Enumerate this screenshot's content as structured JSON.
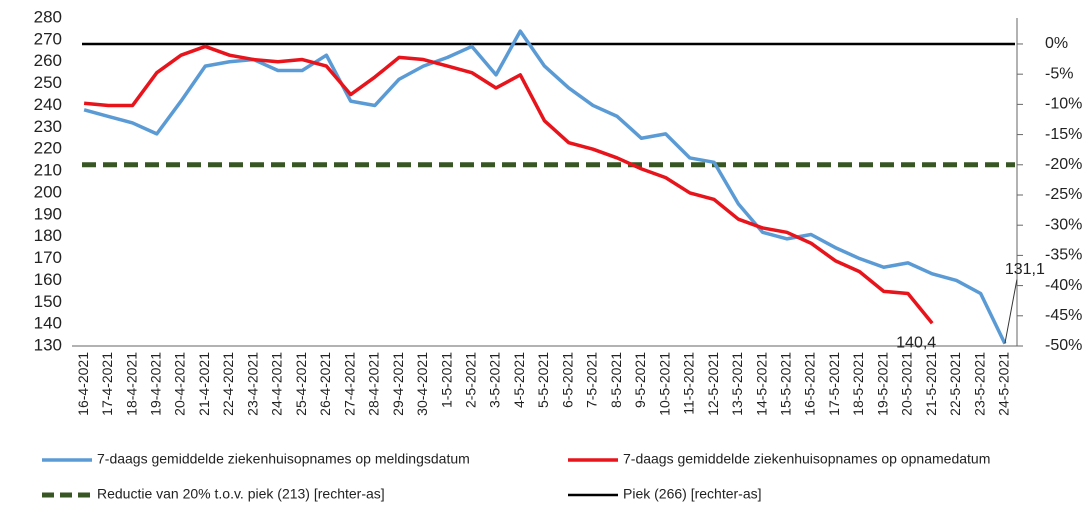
{
  "chart_data": {
    "type": "line",
    "categories": [
      "16-4-2021",
      "17-4-2021",
      "18-4-2021",
      "19-4-2021",
      "20-4-2021",
      "21-4-2021",
      "22-4-2021",
      "23-4-2021",
      "24-4-2021",
      "25-4-2021",
      "26-4-2021",
      "27-4-2021",
      "28-4-2021",
      "29-4-2021",
      "30-4-2021",
      "1-5-2021",
      "2-5-2021",
      "3-5-2021",
      "4-5-2021",
      "5-5-2021",
      "6-5-2021",
      "7-5-2021",
      "8-5-2021",
      "9-5-2021",
      "10-5-2021",
      "11-5-2021",
      "12-5-2021",
      "13-5-2021",
      "14-5-2021",
      "15-5-2021",
      "16-5-2021",
      "17-5-2021",
      "18-5-2021",
      "19-5-2021",
      "20-5-2021",
      "21-5-2021",
      "22-5-2021",
      "23-5-2021",
      "24-5-2021"
    ],
    "series": [
      {
        "name": "7-daags gemiddelde ziekenhuisopnames op meldingsdatum",
        "color": "#5b9bd5",
        "values": [
          238,
          235,
          232,
          227,
          242,
          258,
          260,
          261,
          256,
          256,
          263,
          242,
          240,
          252,
          258,
          262,
          267,
          254,
          274,
          258,
          248,
          240,
          235,
          225,
          227,
          216,
          214,
          195,
          182,
          179,
          181,
          175,
          170,
          166,
          168,
          163,
          160,
          154,
          131.1
        ],
        "value_labels": [
          null,
          null,
          null,
          null,
          null,
          null,
          null,
          null,
          null,
          null,
          null,
          null,
          null,
          null,
          null,
          null,
          null,
          null,
          null,
          null,
          null,
          null,
          null,
          null,
          null,
          null,
          null,
          null,
          null,
          null,
          null,
          null,
          null,
          null,
          null,
          null,
          null,
          null,
          "131,1"
        ]
      },
      {
        "name": "7-daags gemiddelde ziekenhuisopnames op opnamedatum",
        "color": "#e8141c",
        "values": [
          241,
          240,
          240,
          255,
          263,
          267,
          263,
          261,
          260,
          261,
          258,
          245,
          253,
          262,
          261,
          258,
          255,
          248,
          254,
          233,
          223,
          220,
          216,
          211,
          207,
          200,
          197,
          188,
          184,
          182,
          177,
          169,
          164,
          155,
          154,
          140.4,
          null,
          null,
          null
        ],
        "value_labels": [
          null,
          null,
          null,
          null,
          null,
          null,
          null,
          null,
          null,
          null,
          null,
          null,
          null,
          null,
          null,
          null,
          null,
          null,
          null,
          null,
          null,
          null,
          null,
          null,
          null,
          null,
          null,
          null,
          null,
          null,
          null,
          null,
          null,
          null,
          null,
          "140,4",
          null,
          null,
          null
        ]
      }
    ],
    "reference_lines": [
      {
        "name": "Reductie van 20% t.o.v. piek (213) [rechter-as]",
        "color": "#375623",
        "dashed": true,
        "value": -20,
        "axis": "y2"
      },
      {
        "name": "Piek (266) [rechter-as]",
        "color": "#000000",
        "dashed": false,
        "value": 0,
        "axis": "y2"
      }
    ],
    "ylim": [
      130,
      280
    ],
    "yticks": [
      130,
      140,
      150,
      160,
      170,
      180,
      190,
      200,
      210,
      220,
      230,
      240,
      250,
      260,
      270,
      280
    ],
    "y2lim": [
      -50,
      4.3
    ],
    "y2ticks": [
      {
        "value": 0,
        "label": "0%"
      },
      {
        "value": -5,
        "label": "-5%"
      },
      {
        "value": -10,
        "label": "-10%"
      },
      {
        "value": -15,
        "label": "-15%"
      },
      {
        "value": -20,
        "label": "-20%"
      },
      {
        "value": -25,
        "label": "-25%"
      },
      {
        "value": -30,
        "label": "-30%"
      },
      {
        "value": -35,
        "label": "-35%"
      },
      {
        "value": -40,
        "label": "-40%"
      },
      {
        "value": -45,
        "label": "-45%"
      },
      {
        "value": -50,
        "label": "-50%"
      }
    ],
    "grid": false
  }
}
